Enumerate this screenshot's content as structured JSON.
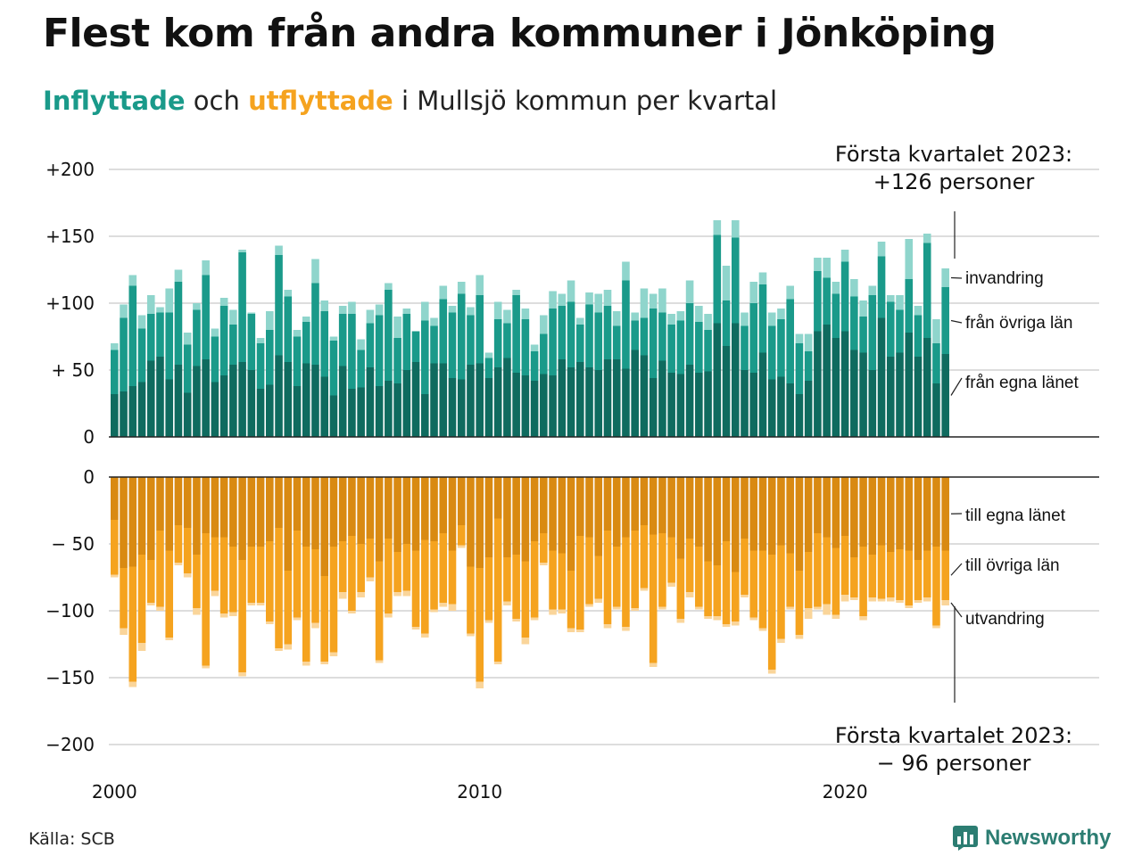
{
  "title": "Flest kom från andra kommuner i Jönköping",
  "subtitle": {
    "in_word": "Inflyttade",
    "connector": "och",
    "out_word": "utflyttade",
    "rest": "i Mullsjö kommun per kvartal"
  },
  "source": "Källa: SCB",
  "logo": {
    "text": "Newsworthy",
    "icon": "bar-chart-logo-icon",
    "color": "#2c7d72"
  },
  "colors": {
    "in_egna": "#0f6b5f",
    "in_ovriga": "#1a9a8a",
    "in_invandring": "#8fd5cc",
    "out_egna": "#d98a12",
    "out_ovriga": "#f5a31f",
    "out_utvandring": "#fad59a"
  },
  "chart_data": {
    "type": "bar",
    "stacked": true,
    "x_start": "2000 Q1",
    "xticks": [
      {
        "label": "2000",
        "index": 0
      },
      {
        "label": "2010",
        "index": 40
      },
      {
        "label": "2020",
        "index": 80
      }
    ],
    "upper_panel": {
      "yticks": [
        "+200",
        "+150",
        "+100",
        "+ 50",
        "0"
      ],
      "ylim": [
        0,
        200
      ],
      "series": [
        {
          "name": "från egna länet",
          "values": [
            32,
            34,
            38,
            41,
            57,
            60,
            43,
            54,
            33,
            53,
            58,
            41,
            46,
            54,
            56,
            50,
            36,
            39,
            61,
            56,
            38,
            55,
            54,
            45,
            31,
            53,
            36,
            37,
            52,
            38,
            42,
            40,
            50,
            56,
            32,
            55,
            55,
            44,
            43,
            54,
            55,
            44,
            52,
            59,
            48,
            46,
            42,
            47,
            46,
            58,
            52,
            56,
            52,
            50,
            58,
            58,
            51,
            65,
            61,
            44,
            57,
            48,
            47,
            54,
            48,
            49,
            85,
            68,
            85,
            50,
            48,
            63,
            43,
            45,
            40,
            32,
            42,
            79,
            84,
            74,
            79,
            65,
            63,
            50,
            89,
            60,
            63,
            78,
            60,
            74,
            40,
            62
          ]
        },
        {
          "name": "från övriga län",
          "values": [
            33,
            55,
            75,
            40,
            35,
            33,
            50,
            62,
            36,
            42,
            63,
            34,
            52,
            30,
            82,
            42,
            34,
            41,
            75,
            49,
            37,
            31,
            61,
            49,
            41,
            39,
            56,
            28,
            33,
            53,
            68,
            34,
            42,
            23,
            55,
            28,
            48,
            49,
            64,
            37,
            51,
            15,
            36,
            26,
            58,
            42,
            22,
            30,
            50,
            40,
            49,
            28,
            47,
            43,
            40,
            25,
            66,
            22,
            28,
            52,
            36,
            36,
            40,
            46,
            38,
            31,
            66,
            34,
            64,
            33,
            52,
            51,
            40,
            43,
            63,
            38,
            22,
            45,
            35,
            33,
            52,
            40,
            27,
            56,
            46,
            41,
            32,
            40,
            31,
            71,
            30,
            50
          ]
        },
        {
          "name": "invandring",
          "values": [
            5,
            10,
            8,
            10,
            14,
            4,
            18,
            9,
            9,
            5,
            11,
            6,
            6,
            11,
            2,
            1,
            4,
            14,
            7,
            5,
            5,
            4,
            18,
            8,
            3,
            6,
            9,
            8,
            10,
            8,
            5,
            16,
            4,
            0,
            14,
            6,
            10,
            5,
            9,
            6,
            15,
            4,
            13,
            10,
            4,
            8,
            5,
            14,
            13,
            9,
            16,
            5,
            9,
            14,
            12,
            11,
            14,
            6,
            22,
            11,
            18,
            8,
            7,
            17,
            12,
            12,
            11,
            26,
            13,
            10,
            16,
            9,
            10,
            8,
            10,
            7,
            13,
            10,
            15,
            9,
            9,
            13,
            12,
            7,
            11,
            5,
            11,
            30,
            7,
            7,
            18,
            14
          ]
        }
      ]
    },
    "lower_panel": {
      "yticks": [
        "0",
        "− 50",
        "−100",
        "−150",
        "−200"
      ],
      "ylim": [
        -200,
        0
      ],
      "series": [
        {
          "name": "till egna länet",
          "values": [
            -32,
            -68,
            -67,
            -58,
            -62,
            -40,
            -55,
            -36,
            -38,
            -58,
            -42,
            -45,
            -45,
            -52,
            -62,
            -52,
            -52,
            -48,
            -38,
            -70,
            -40,
            -52,
            -54,
            -74,
            -52,
            -48,
            -44,
            -50,
            -46,
            -63,
            -46,
            -56,
            -50,
            -55,
            -47,
            -48,
            -42,
            -55,
            -36,
            -67,
            -68,
            -60,
            -31,
            -60,
            -58,
            -63,
            -48,
            -42,
            -55,
            -57,
            -70,
            -44,
            -45,
            -59,
            -40,
            -52,
            -45,
            -40,
            -36,
            -43,
            -42,
            -45,
            -61,
            -46,
            -52,
            -63,
            -66,
            -48,
            -71,
            -46,
            -55,
            -55,
            -58,
            -51,
            -57,
            -70,
            -56,
            -42,
            -45,
            -53,
            -44,
            -60,
            -52,
            -58,
            -51,
            -56,
            -54,
            -55,
            -62,
            -55,
            -52,
            -55
          ]
        },
        {
          "name": "till övriga län",
          "values": [
            -41,
            -45,
            -86,
            -66,
            -32,
            -57,
            -65,
            -28,
            -34,
            -40,
            -99,
            -40,
            -57,
            -49,
            -84,
            -42,
            -42,
            -60,
            -90,
            -55,
            -65,
            -86,
            -55,
            -64,
            -79,
            -38,
            -56,
            -36,
            -29,
            -74,
            -56,
            -30,
            -35,
            -57,
            -70,
            -51,
            -52,
            -40,
            -15,
            -50,
            -85,
            -47,
            -107,
            -33,
            -48,
            -57,
            -57,
            -22,
            -44,
            -42,
            -43,
            -70,
            -50,
            -32,
            -70,
            -45,
            -67,
            -58,
            -47,
            -96,
            -55,
            -34,
            -45,
            -40,
            -45,
            -41,
            -38,
            -62,
            -37,
            -42,
            -50,
            -58,
            -86,
            -70,
            -40,
            -48,
            -42,
            -55,
            -50,
            -50,
            -44,
            -30,
            -52,
            -32,
            -40,
            -34,
            -38,
            -41,
            -30,
            -35,
            -59,
            -37
          ]
        },
        {
          "name": "utvandring",
          "values": [
            -2,
            -5,
            -4,
            -6,
            -2,
            -3,
            -2,
            -2,
            -3,
            -5,
            -2,
            -4,
            -3,
            -3,
            -3,
            -2,
            -2,
            -2,
            -2,
            -4,
            -2,
            -3,
            -4,
            -2,
            -3,
            -5,
            -2,
            -4,
            -3,
            -2,
            -3,
            -3,
            -4,
            -2,
            -3,
            -2,
            -3,
            -5,
            -2,
            -2,
            -5,
            -2,
            -2,
            -3,
            -2,
            -5,
            -2,
            -2,
            -4,
            -3,
            -3,
            -2,
            -2,
            -3,
            -3,
            -2,
            -3,
            -2,
            -2,
            -3,
            -2,
            -3,
            -3,
            -4,
            -2,
            -2,
            -3,
            -2,
            -3,
            -2,
            -2,
            -2,
            -3,
            -3,
            -2,
            -3,
            -8,
            -2,
            -8,
            -3,
            -5,
            -2,
            -3,
            -3,
            -2,
            -3,
            -2,
            -2,
            -2,
            -3,
            -2,
            -4
          ]
        }
      ]
    },
    "annotations": [
      {
        "line1": "Första kvartalet 2023:",
        "line2": "+126 personer"
      },
      {
        "line1": "Första kvartalet 2023:",
        "line2": "− 96 personer"
      }
    ],
    "grid": true
  }
}
